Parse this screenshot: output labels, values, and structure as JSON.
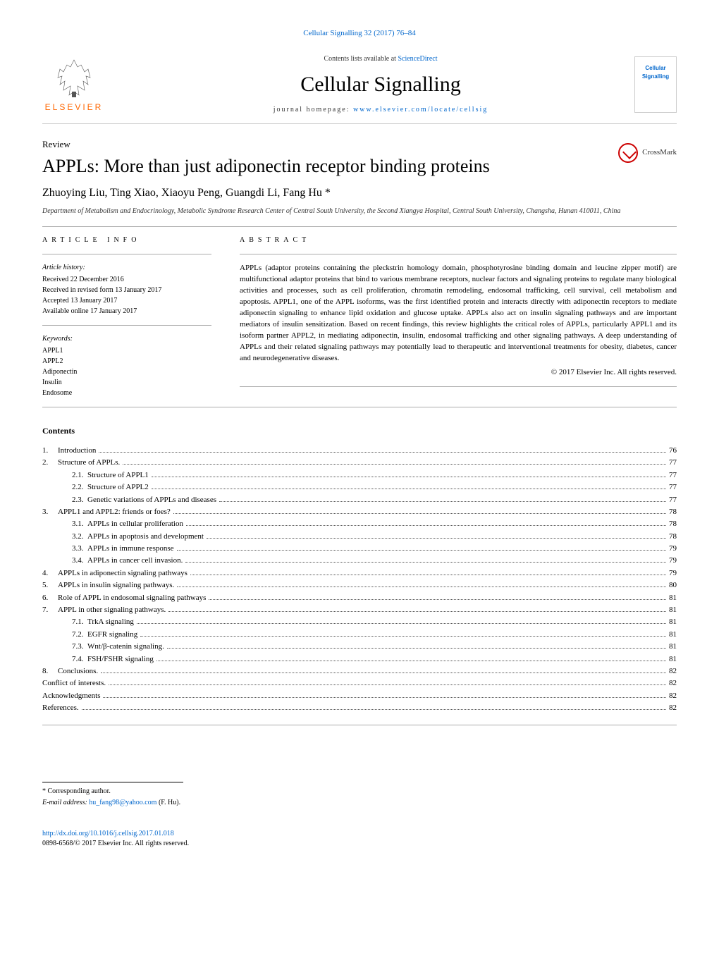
{
  "header": {
    "citation": "Cellular Signalling 32 (2017) 76–84",
    "contentsLine": "Contents lists available at",
    "contentsLink": "ScienceDirect",
    "journalTitle": "Cellular Signalling",
    "homepageLabel": "journal homepage:",
    "homepageUrl": "www.elsevier.com/locate/cellsig",
    "publisher": "ELSEVIER",
    "coverTitle1": "Cellular",
    "coverTitle2": "Signalling"
  },
  "article": {
    "type": "Review",
    "title": "APPLs: More than just adiponectin receptor binding proteins",
    "authors": "Zhuoying Liu, Ting Xiao, Xiaoyu Peng, Guangdi Li, Fang Hu *",
    "affiliation": "Department of Metabolism and Endocrinology, Metabolic Syndrome Research Center of Central South University, the Second Xiangya Hospital, Central South University, Changsha, Hunan 410011, China",
    "crossmark": "CrossMark"
  },
  "info": {
    "heading": "ARTICLE INFO",
    "historyLabel": "Article history:",
    "received": "Received 22 December 2016",
    "revised": "Received in revised form 13 January 2017",
    "accepted": "Accepted 13 January 2017",
    "online": "Available online 17 January 2017",
    "keywordsLabel": "Keywords:",
    "keywords": [
      "APPL1",
      "APPL2",
      "Adiponectin",
      "Insulin",
      "Endosome"
    ]
  },
  "abstract": {
    "heading": "ABSTRACT",
    "text": "APPLs (adaptor proteins containing the pleckstrin homology domain, phosphotyrosine binding domain and leucine zipper motif) are multifunctional adaptor proteins that bind to various membrane receptors, nuclear factors and signaling proteins to regulate many biological activities and processes, such as cell proliferation, chromatin remodeling, endosomal trafficking, cell survival, cell metabolism and apoptosis. APPL1, one of the APPL isoforms, was the first identified protein and interacts directly with adiponectin receptors to mediate adiponectin signaling to enhance lipid oxidation and glucose uptake. APPLs also act on insulin signaling pathways and are important mediators of insulin sensitization. Based on recent findings, this review highlights the critical roles of APPLs, particularly APPL1 and its isoform partner APPL2, in mediating adiponectin, insulin, endosomal trafficking and other signaling pathways. A deep understanding of APPLs and their related signaling pathways may potentially lead to therapeutic and interventional treatments for obesity, diabetes, cancer and neurodegenerative diseases.",
    "copyright": "© 2017 Elsevier Inc. All rights reserved."
  },
  "contents": {
    "heading": "Contents",
    "items": [
      {
        "num": "1.",
        "title": "Introduction",
        "page": "76"
      },
      {
        "num": "2.",
        "title": "Structure of APPLs.",
        "page": "77"
      },
      {
        "sub": "2.1.",
        "title": "Structure of APPL1",
        "page": "77"
      },
      {
        "sub": "2.2.",
        "title": "Structure of APPL2",
        "page": "77"
      },
      {
        "sub": "2.3.",
        "title": "Genetic variations of APPLs and diseases",
        "page": "77"
      },
      {
        "num": "3.",
        "title": "APPL1 and APPL2: friends or foes?",
        "page": "78"
      },
      {
        "sub": "3.1.",
        "title": "APPLs in cellular proliferation",
        "page": "78"
      },
      {
        "sub": "3.2.",
        "title": "APPLs in apoptosis and development",
        "page": "78"
      },
      {
        "sub": "3.3.",
        "title": "APPLs in immune response",
        "page": "79"
      },
      {
        "sub": "3.4.",
        "title": "APPLs in cancer cell invasion.",
        "page": "79"
      },
      {
        "num": "4.",
        "title": "APPLs in adiponectin signaling pathways",
        "page": "79"
      },
      {
        "num": "5.",
        "title": "APPLs in insulin signaling pathways.",
        "page": "80"
      },
      {
        "num": "6.",
        "title": "Role of APPL in endosomal signaling pathways",
        "page": "81"
      },
      {
        "num": "7.",
        "title": "APPL in other signaling pathways.",
        "page": "81"
      },
      {
        "sub": "7.1.",
        "title": "TrkA signaling",
        "page": "81"
      },
      {
        "sub": "7.2.",
        "title": "EGFR signaling",
        "page": "81"
      },
      {
        "sub": "7.3.",
        "title": "Wnt/β-catenin signaling.",
        "page": "81"
      },
      {
        "sub": "7.4.",
        "title": "FSH/FSHR signaling",
        "page": "81"
      },
      {
        "num": "8.",
        "title": "Conclusions.",
        "page": "82"
      },
      {
        "title": "Conflict of interests.",
        "page": "82"
      },
      {
        "title": "Acknowledgments",
        "page": "82"
      },
      {
        "title": "References.",
        "page": "82"
      }
    ]
  },
  "footnote": {
    "corresponding": "* Corresponding author.",
    "emailLabel": "E-mail address:",
    "email": "hu_fang98@yahoo.com",
    "emailName": "(F. Hu)."
  },
  "footer": {
    "doi": "http://dx.doi.org/10.1016/j.cellsig.2017.01.018",
    "issn": "0898-6568/© 2017 Elsevier Inc. All rights reserved."
  },
  "colors": {
    "link": "#0066cc",
    "elsevier": "#ff6600",
    "text": "#000000",
    "border": "#cccccc"
  }
}
